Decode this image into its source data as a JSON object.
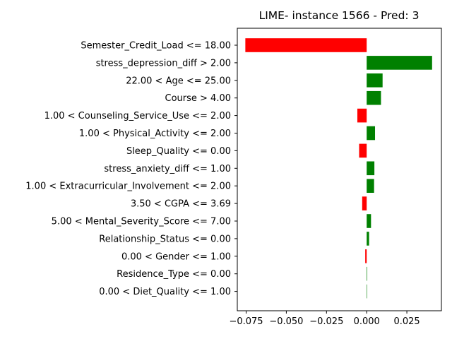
{
  "chart_data": {
    "type": "bar",
    "orientation": "horizontal",
    "title": "LIME- instance 1566 - Pred: 3",
    "xlabel": "",
    "ylabel": "",
    "xlim": [
      -0.0805,
      0.0465
    ],
    "xticks": [
      -0.075,
      -0.05,
      -0.025,
      0.0,
      0.025
    ],
    "xtick_labels": [
      "−0.075",
      "−0.050",
      "−0.025",
      "0.000",
      "0.025"
    ],
    "grid": false,
    "legend": "none",
    "colors": {
      "positive": "#008000",
      "negative": "#ff0000"
    },
    "categories": [
      "Semester_Credit_Load <= 18.00",
      "stress_depression_diff > 2.00",
      "22.00 < Age <= 25.00",
      "Course > 4.00",
      "1.00 < Counseling_Service_Use <= 2.00",
      "1.00 < Physical_Activity <= 2.00",
      "Sleep_Quality <= 0.00",
      "stress_anxiety_diff <= 1.00",
      "1.00 < Extracurricular_Involvement <= 2.00",
      "3.50 < CGPA <= 3.69",
      "5.00 < Mental_Severity_Score <= 7.00",
      "Relationship_Status <= 0.00",
      "0.00 < Gender <= 1.00",
      "Residence_Type <= 0.00",
      "0.00 < Diet_Quality <= 1.00"
    ],
    "values": [
      -0.0755,
      0.0407,
      0.0099,
      0.0089,
      -0.0058,
      0.0052,
      -0.0047,
      0.0048,
      0.0046,
      -0.0028,
      0.0027,
      0.0015,
      -0.0009,
      0.0003,
      0.0
    ]
  }
}
